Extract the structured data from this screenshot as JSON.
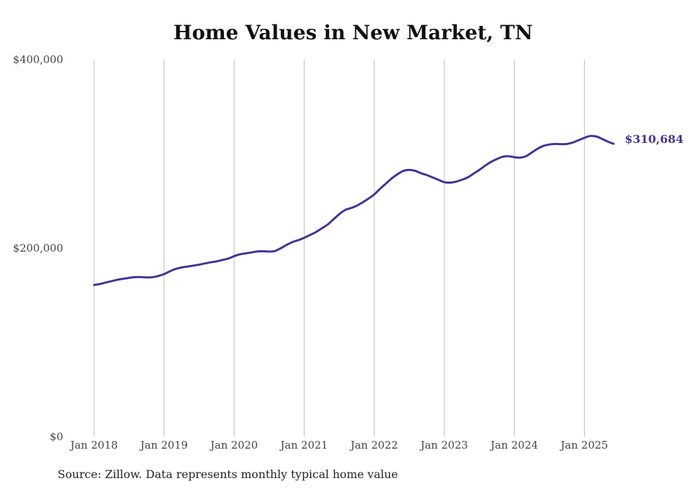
{
  "chart_data": {
    "type": "line",
    "title": "Home Values in New Market, TN",
    "source": "Source: Zillow. Data represents monthly typical home value",
    "xlabel": "",
    "ylabel": "",
    "x_ticks": [
      "Jan 2018",
      "Jan 2019",
      "Jan 2020",
      "Jan 2021",
      "Jan 2022",
      "Jan 2023",
      "Jan 2024",
      "Jan 2025"
    ],
    "y_ticks": [
      "$0",
      "$200,000",
      "$400,000"
    ],
    "ylim": [
      0,
      400000
    ],
    "xlim": [
      "2018-01",
      "2025-06"
    ],
    "grid": "vertical",
    "line_color": "#3d3598",
    "end_label": "$310,684",
    "series": [
      {
        "x": [
          "2018-01",
          "2018-02",
          "2018-03",
          "2018-04",
          "2018-05",
          "2018-06",
          "2018-07",
          "2018-08",
          "2018-09",
          "2018-10",
          "2018-11",
          "2018-12",
          "2019-01",
          "2019-02",
          "2019-03",
          "2019-04",
          "2019-05",
          "2019-06",
          "2019-07",
          "2019-08",
          "2019-09",
          "2019-10",
          "2019-11",
          "2019-12",
          "2020-01",
          "2020-02",
          "2020-03",
          "2020-04",
          "2020-05",
          "2020-06",
          "2020-07",
          "2020-08",
          "2020-09",
          "2020-10",
          "2020-11",
          "2020-12",
          "2021-01",
          "2021-02",
          "2021-03",
          "2021-04",
          "2021-05",
          "2021-06",
          "2021-07",
          "2021-08",
          "2021-09",
          "2021-10",
          "2021-11",
          "2021-12",
          "2022-01",
          "2022-02",
          "2022-03",
          "2022-04",
          "2022-05",
          "2022-06",
          "2022-07",
          "2022-08",
          "2022-09",
          "2022-10",
          "2022-11",
          "2022-12",
          "2023-01",
          "2023-02",
          "2023-03",
          "2023-04",
          "2023-05",
          "2023-06",
          "2023-07",
          "2023-08",
          "2023-09",
          "2023-10",
          "2023-11",
          "2023-12",
          "2024-01",
          "2024-02",
          "2024-03",
          "2024-04",
          "2024-05",
          "2024-06",
          "2024-07",
          "2024-08",
          "2024-09",
          "2024-10",
          "2024-11",
          "2024-12",
          "2025-01",
          "2025-02",
          "2025-03",
          "2025-04",
          "2025-05",
          "2025-06"
        ],
        "values": [
          161000,
          162000,
          163500,
          165000,
          166500,
          167500,
          168500,
          169200,
          169300,
          169000,
          169200,
          170500,
          172500,
          175500,
          178000,
          179500,
          180500,
          181500,
          182500,
          183800,
          185000,
          186000,
          187500,
          189000,
          191500,
          193500,
          194500,
          195500,
          196500,
          196700,
          196400,
          197000,
          200000,
          203500,
          206500,
          208500,
          211000,
          214000,
          217000,
          221000,
          225000,
          230500,
          236000,
          240500,
          242500,
          245000,
          248500,
          252500,
          257000,
          263000,
          268500,
          274000,
          278500,
          282000,
          283000,
          282000,
          279500,
          277500,
          275000,
          272500,
          270000,
          269500,
          270500,
          272500,
          275000,
          279000,
          283000,
          287500,
          291500,
          294500,
          297000,
          297500,
          296500,
          296000,
          297500,
          301500,
          305500,
          308500,
          310000,
          310500,
          310300,
          310500,
          312000,
          314500,
          317000,
          319000,
          318500,
          316000,
          313000,
          310684
        ]
      }
    ]
  }
}
